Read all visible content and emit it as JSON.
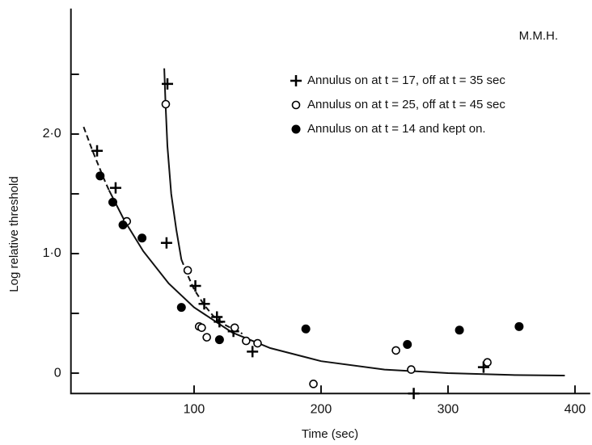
{
  "chart_data": {
    "type": "scatter",
    "annotation": "M.M.H.",
    "xlabel": "Time (sec)",
    "ylabel": "Log relative threshold",
    "xlim": [
      3,
      412
    ],
    "ylim": [
      -0.17,
      3.05
    ],
    "xticks": [
      100,
      200,
      300,
      400
    ],
    "yticks": [
      0,
      {
        "value": 1,
        "label": "1·0"
      },
      {
        "value": 2,
        "label": "2·0"
      }
    ],
    "yminor_ticks": [
      0.5,
      1.5,
      2.5
    ],
    "legend": "upper right",
    "series": [
      {
        "name": "Annulus on at t = 17, off at t = 35 sec",
        "marker": "plus",
        "color": "#000000",
        "x": [
          23.6,
          38.2,
          79,
          78.3,
          101,
          108,
          118,
          120,
          131,
          146,
          273,
          328
        ],
        "values": [
          1.86,
          1.55,
          2.42,
          1.09,
          0.73,
          0.58,
          0.47,
          0.43,
          0.35,
          0.18,
          -0.17,
          0.05
        ]
      },
      {
        "name": "Annulus on at t = 25, off at t = 45 sec",
        "marker": "open-circle",
        "color": "#000000",
        "x": [
          77.7,
          47,
          95,
          104,
          106,
          110,
          132,
          141,
          150,
          194,
          259,
          271,
          331
        ],
        "values": [
          2.25,
          1.27,
          0.86,
          0.39,
          0.38,
          0.3,
          0.38,
          0.27,
          0.25,
          -0.09,
          0.19,
          0.03,
          0.09
        ]
      },
      {
        "name": "Annulus on at t = 14 and kept on.",
        "marker": "filled-circle",
        "color": "#000000",
        "x": [
          26,
          36,
          44,
          59,
          90,
          120,
          188,
          268,
          309,
          356
        ],
        "values": [
          1.65,
          1.43,
          1.24,
          1.13,
          0.55,
          0.28,
          0.37,
          0.24,
          0.36,
          0.39
        ]
      }
    ],
    "curves": [
      {
        "style": "dashed",
        "x": [
          13,
          20,
          30,
          33
        ],
        "values": [
          2.06,
          1.86,
          1.6,
          1.53
        ]
      },
      {
        "style": "solid",
        "x": [
          33,
          45,
          60,
          80,
          100,
          130,
          160,
          200,
          250,
          300,
          350,
          392
        ],
        "values": [
          1.53,
          1.28,
          1.02,
          0.75,
          0.55,
          0.34,
          0.21,
          0.1,
          0.03,
          0,
          -0.015,
          -0.02
        ]
      },
      {
        "style": "solid",
        "x": [
          76.5,
          77.5,
          79,
          82,
          86,
          90
        ],
        "values": [
          2.55,
          2.25,
          1.9,
          1.5,
          1.2,
          0.95
        ]
      },
      {
        "style": "dashed",
        "x": [
          90,
          95,
          100,
          108,
          115,
          125,
          138
        ],
        "values": [
          0.95,
          0.82,
          0.7,
          0.57,
          0.48,
          0.4,
          0.33
        ]
      }
    ]
  }
}
